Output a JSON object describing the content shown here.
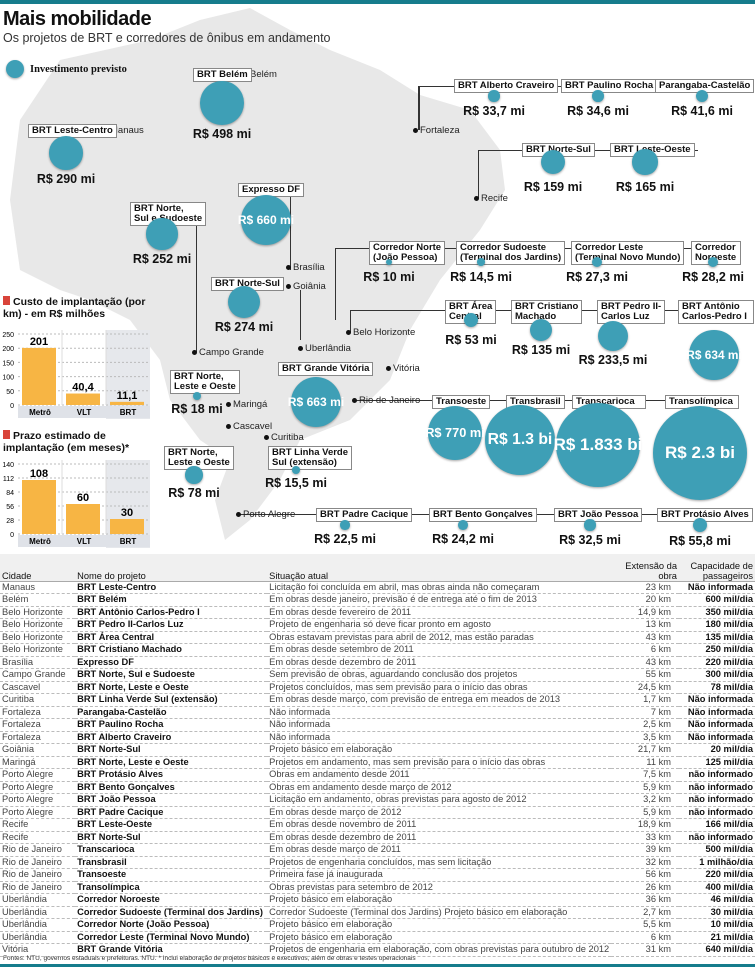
{
  "header": {
    "title": "Mais mobilidade",
    "subtitle": "Os projetos de BRT e corredores de ônibus em andamento"
  },
  "legend": {
    "label": "Investimento previsto",
    "color": "#3e9fb6"
  },
  "cities": [
    "Belém",
    "Manaus",
    "Fortaleza",
    "Recife",
    "Brasília",
    "Goiânia",
    "Uberlândia",
    "Belo Horizonte",
    "Campo Grande",
    "Vitória",
    "Rio de Janeiro",
    "Maringá",
    "Cascavel",
    "Curitiba",
    "Porto Alegre"
  ],
  "projects": [
    {
      "name": "BRT Belém",
      "value_label": "R$ 498 mi",
      "value_mi": 498
    },
    {
      "name": "BRT Leste-Centro",
      "value_label": "R$ 290 mi",
      "value_mi": 290
    },
    {
      "name": "Expresso DF",
      "value_label": "R$ 660 mi",
      "value_mi": 660
    },
    {
      "name": "BRT Norte, Sul e Sudoeste",
      "value_label": "R$ 252 mi",
      "value_mi": 252
    },
    {
      "name": "BRT Norte-Sul",
      "value_label": "R$ 274 mi",
      "value_mi": 274
    },
    {
      "name": "BRT Norte, Leste e Oeste",
      "value_label": "R$ 18 mi",
      "value_mi": 18
    },
    {
      "name": "BRT Grande Vitória",
      "value_label": "R$ 663 mi",
      "value_mi": 663
    },
    {
      "name": "BRT Norte, Leste e Oeste",
      "value_label": "R$ 78 mi",
      "value_mi": 78
    },
    {
      "name": "BRT Linha Verde Sul (extensão)",
      "value_label": "R$ 15,5 mi",
      "value_mi": 15.5
    },
    {
      "name": "BRT Alberto Craveiro",
      "value_label": "R$ 33,7 mi",
      "value_mi": 33.7
    },
    {
      "name": "BRT Paulino Rocha",
      "value_label": "R$ 34,6 mi",
      "value_mi": 34.6
    },
    {
      "name": "Parangaba-Castelão",
      "value_label": "R$ 41,6 mi",
      "value_mi": 41.6
    },
    {
      "name": "BRT Norte-Sul",
      "value_label": "R$ 159 mi",
      "value_mi": 159
    },
    {
      "name": "BRT Leste-Oeste",
      "value_label": "R$ 165 mi",
      "value_mi": 165
    },
    {
      "name": "Corredor Norte (João Pessoa)",
      "value_label": "R$ 10 mi",
      "value_mi": 10
    },
    {
      "name": "Corredor Sudoeste (Terminal dos Jardins)",
      "value_label": "R$ 14,5 mi",
      "value_mi": 14.5
    },
    {
      "name": "Corredor Leste (Terminal Novo Mundo)",
      "value_label": "R$ 27,3 mi",
      "value_mi": 27.3
    },
    {
      "name": "Corredor Noroeste",
      "value_label": "R$ 28,2 mi",
      "value_mi": 28.2
    },
    {
      "name": "BRT Área Central",
      "value_label": "R$ 53 mi",
      "value_mi": 53
    },
    {
      "name": "BRT Cristiano Machado",
      "value_label": "R$ 135 mi",
      "value_mi": 135
    },
    {
      "name": "BRT Pedro II-Carlos Luz",
      "value_label": "R$ 233,5 mi",
      "value_mi": 233.5
    },
    {
      "name": "BRT Antônio Carlos-Pedro I",
      "value_label": "R$ 634 mi",
      "value_mi": 634
    },
    {
      "name": "Transoeste",
      "value_label": "R$ 770 mi",
      "value_mi": 770
    },
    {
      "name": "Transbrasil",
      "value_label": "R$ 1.3 bi",
      "value_mi": 1300
    },
    {
      "name": "Transcarioca",
      "value_label": "R$ 1.833 bi",
      "value_mi": 1833
    },
    {
      "name": "Transolímpica",
      "value_label": "R$ 2.3 bi",
      "value_mi": 2300
    },
    {
      "name": "BRT Padre Cacique",
      "value_label": "R$ 22,5 mi",
      "value_mi": 22.5
    },
    {
      "name": "BRT Bento Gonçalves",
      "value_label": "R$ 24,2 mi",
      "value_mi": 24.2
    },
    {
      "name": "BRT João Pessoa",
      "value_label": "R$ 32,5 mi",
      "value_mi": 32.5
    },
    {
      "name": "BRT Protásio Alves",
      "value_label": "R$ 55,8 mi",
      "value_mi": 55.8
    }
  ],
  "chart_data": [
    {
      "type": "bar",
      "title": "Custo de implantação (por km) - em R$ milhões",
      "categories": [
        "Metrô",
        "VLT",
        "BRT"
      ],
      "values": [
        201,
        40.4,
        11.1
      ],
      "value_labels": [
        "201",
        "40,4",
        "11,1"
      ],
      "yticks": [
        0,
        50,
        100,
        150,
        200,
        250
      ],
      "ylim": [
        0,
        250
      ],
      "color": "#f7b544"
    },
    {
      "type": "bar",
      "title": "Prazo estimado de implantação (em meses)*",
      "categories": [
        "Metrô",
        "VLT",
        "BRT"
      ],
      "values": [
        108,
        60,
        30
      ],
      "value_labels": [
        "108",
        "60",
        "30"
      ],
      "yticks": [
        0,
        28,
        56,
        84,
        112,
        140
      ],
      "ylim": [
        0,
        140
      ],
      "color": "#f7b544"
    }
  ],
  "table": {
    "headers": [
      "Cidade",
      "Nome do projeto",
      "Situação atual",
      "Extensão da obra",
      "Capacidade de passageiros"
    ],
    "rows": [
      [
        "Manaus",
        "BRT Leste-Centro",
        "Licitação foi concluída em abril, mas obras ainda não começaram",
        "23 km",
        "Não informada"
      ],
      [
        "Belém",
        "BRT Belém",
        "Em obras desde janeiro, previsão é de entrega até o fim de 2013",
        "20 km",
        "600 mil/dia"
      ],
      [
        "Belo Horizonte",
        "BRT Antônio Carlos-Pedro I",
        "Em obras desde fevereiro de 2011",
        "14,9 km",
        "350 mil/dia"
      ],
      [
        "Belo Horizonte",
        "BRT Pedro II-Carlos Luz",
        "Projeto de engenharia só deve ficar pronto em agosto",
        "13 km",
        "180 mil/dia"
      ],
      [
        "Belo Horizonte",
        "BRT Área Central",
        "Obras estavam previstas para abril de 2012, mas estão paradas",
        "43 km",
        "135 mil/dia"
      ],
      [
        "Belo Horizonte",
        "BRT Cristiano Machado",
        "Em obras desde setembro de 2011",
        "6 km",
        "250 mil/dia"
      ],
      [
        "Brasília",
        "Expresso DF",
        "Em obras desde dezembro de 2011",
        "43 km",
        "220 mil/dia"
      ],
      [
        "Campo Grande",
        "BRT Norte, Sul e Sudoeste",
        "Sem previsão de obras, aguardando conclusão dos projetos",
        "55 km",
        "300 mil/dia"
      ],
      [
        "Cascavel",
        "BRT Norte, Leste e Oeste",
        "Projetos concluídos, mas sem previsão para o início das obras",
        "24,5 km",
        "78 mil/dia"
      ],
      [
        "Curitiba",
        "BRT Linha Verde Sul (extensão)",
        "Em obras desde março, com previsão de entrega em meados de 2013",
        "1,7 km",
        "Não informada"
      ],
      [
        "Fortaleza",
        "Parangaba-Castelão",
        "Não informada",
        "7 km",
        "Não informada"
      ],
      [
        "Fortaleza",
        "BRT Paulino Rocha",
        "Não informada",
        "2,5 km",
        "Não informada"
      ],
      [
        "Fortaleza",
        "BRT Alberto Craveiro",
        "Não informada",
        "3,5 km",
        "Não informada"
      ],
      [
        "Goiânia",
        "BRT Norte-Sul",
        "Projeto básico em elaboração",
        "21,7 km",
        "20 mil/dia"
      ],
      [
        "Maringá",
        "BRT Norte, Leste e Oeste",
        "Projetos em andamento, mas sem previsão para o início das obras",
        "11 km",
        "125 mil/dia"
      ],
      [
        "Porto Alegre",
        "BRT Protásio Alves",
        "Obras em andamento desde 2011",
        "7,5 km",
        "não informado"
      ],
      [
        "Porto Alegre",
        "BRT Bento Gonçalves",
        "Obras em andamento desde março de 2012",
        "5,9 km",
        "não informado"
      ],
      [
        "Porto Alegre",
        "BRT João Pessoa",
        "Licitação em andamento, obras previstas para agosto de 2012",
        "3,2 km",
        "não informado"
      ],
      [
        "Porto Alegre",
        "BRT Padre Cacique",
        "Em obras desde março de 2012",
        "5,9 km",
        "não informado"
      ],
      [
        "Recife",
        "BRT Leste-Oeste",
        "Em obras desde novembro de 2011",
        "18,9 km",
        "166 mil/dia"
      ],
      [
        "Recife",
        "BRT Norte-Sul",
        "Em obras desde dezembro de 2011",
        "33 km",
        "não informado"
      ],
      [
        "Rio de Janeiro",
        "Transcarioca",
        "Em obras desde março de 2011",
        "39 km",
        "500 mil/dia"
      ],
      [
        "Rio de Janeiro",
        "Transbrasil",
        "Projetos de engenharia concluídos, mas sem licitação",
        "32 km",
        "1 milhão/dia"
      ],
      [
        "Rio de Janeiro",
        "Transoeste",
        "Primeira fase já inaugurada",
        "56 km",
        "220 mil/dia"
      ],
      [
        "Rio de Janeiro",
        "Transolímpica",
        "Obras previstas para setembro de 2012",
        "26 km",
        "400 mil/dia"
      ],
      [
        "Uberlândia",
        "Corredor Noroeste",
        "Projeto básico em elaboração",
        "36 km",
        "46 mil/dia"
      ],
      [
        "Uberlândia",
        "Corredor Sudoeste (Terminal dos Jardins)",
        "Corredor Sudoeste (Terminal dos Jardins) Projeto básico em elaboração",
        "2,7 km",
        "30 mil/dia"
      ],
      [
        "Uberlândia",
        "Corredor Norte (João Pessoa)",
        "Projeto básico em elaboração",
        "5,5 km",
        "10 mil/dia"
      ],
      [
        "Uberlândia",
        "Corredor Leste (Terminal Novo Mundo)",
        "Projeto básico em elaboração",
        "6 km",
        "21 mil/dia"
      ],
      [
        "Vitória",
        "BRT Grande Vitória",
        "Projetos de engenharia em elaboração, com obras previstas para outubro de 2012",
        "31 km",
        "640 mil/dia"
      ]
    ]
  },
  "footer": "Fontes: NTU, governos estaduais e prefeituras. NTU. * Inclui elaboração de projetos básicos e executivos, além de obras e testes operacionais"
}
